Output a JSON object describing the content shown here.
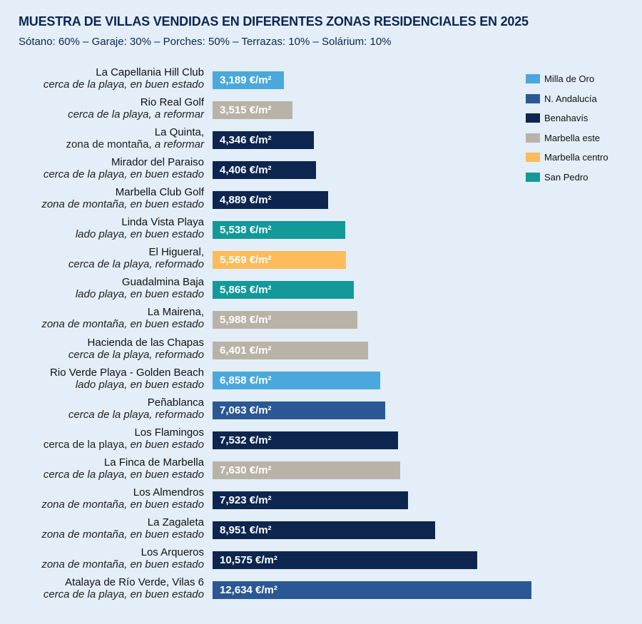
{
  "chart_data": {
    "type": "bar",
    "orientation": "horizontal",
    "title": "MUESTRA DE VILLAS VENDIDAS EN DIFERENTES ZONAS RESIDENCIALES EN 2025",
    "subtitle": "Sótano: 60% – Garaje: 30% – Porches: 50% – Terrazas: 10% – Solárium: 10%",
    "unit": "€/m²",
    "legend_position": "top-right",
    "grid": false,
    "legend": [
      {
        "name": "Milla de Oro",
        "color": "#4aa8dc"
      },
      {
        "name": "N. Andalucía",
        "color": "#2b5894"
      },
      {
        "name": "Benahavís",
        "color": "#0d2650"
      },
      {
        "name": "Marbella este",
        "color": "#b9b2a7"
      },
      {
        "name": "Marbella centro",
        "color": "#fdbb5a"
      },
      {
        "name": "San Pedro",
        "color": "#13999a"
      }
    ],
    "bars": [
      {
        "name": "La Capellania Hill Club",
        "desc_plain": "",
        "desc_italic": "cerca de la playa, en buen estado",
        "value": 3189,
        "label": "3,189 €/m²",
        "zone": "Milla de Oro"
      },
      {
        "name": "Rio Real Golf",
        "desc_plain": "",
        "desc_italic": "cerca de la playa, a reformar",
        "value": 3515,
        "label": "3,515 €/m²",
        "zone": "Marbella este"
      },
      {
        "name": "La Quinta,",
        "desc_plain": "zona de montaña, ",
        "desc_italic": "a reformar",
        "value": 4346,
        "label": "4,346 €/m²",
        "zone": "Benahavís"
      },
      {
        "name": "Mirador del Paraiso",
        "desc_plain": "",
        "desc_italic": "cerca de la playa, en buen estado",
        "value": 4406,
        "label": "4,406 €/m²",
        "zone": "Benahavís"
      },
      {
        "name": "Marbella Club Golf",
        "desc_plain": "",
        "desc_italic": "zona de montaña, en buen estado",
        "value": 4889,
        "label": "4,889 €/m²",
        "zone": "Benahavís"
      },
      {
        "name": "Linda Vista Playa",
        "desc_plain": "",
        "desc_italic": "lado playa, en buen estado",
        "value": 5538,
        "label": "5,538 €/m²",
        "zone": "San Pedro"
      },
      {
        "name": "El Higueral,",
        "desc_plain": "",
        "desc_italic": "cerca de la playa, reformado",
        "value": 5569,
        "label": "5,569 €/m²",
        "zone": "Marbella centro"
      },
      {
        "name": "Guadalmina Baja",
        "desc_plain": "",
        "desc_italic": "lado playa, en buen estado",
        "value": 5865,
        "label": "5,865 €/m²",
        "zone": "San Pedro"
      },
      {
        "name": "La Mairena,",
        "desc_plain": "",
        "desc_italic": "zona de montaña, en buen estado",
        "value": 5988,
        "label": "5,988 €/m²",
        "zone": "Marbella este"
      },
      {
        "name": "Hacienda de las Chapas",
        "desc_plain": "",
        "desc_italic": "cerca de la playa, reformado",
        "value": 6401,
        "label": "6,401 €/m²",
        "zone": "Marbella este"
      },
      {
        "name": "Rio Verde Playa - Golden Beach",
        "desc_plain": "",
        "desc_italic": "lado playa, en buen estado",
        "value": 6858,
        "label": "6,858 €/m²",
        "zone": "Milla de Oro"
      },
      {
        "name": "Peñablanca",
        "desc_plain": "",
        "desc_italic": "cerca de la playa, reformado",
        "value": 7063,
        "label": "7,063 €/m²",
        "zone": "N. Andalucía"
      },
      {
        "name": "Los Flamingos",
        "desc_plain": "cerca de la playa, ",
        "desc_italic": "en buen estado",
        "value": 7532,
        "label": "7,532 €/m²",
        "zone": "Benahavís"
      },
      {
        "name": "La Finca de Marbella",
        "desc_plain": "",
        "desc_italic": "cerca de la playa, en buen estado",
        "value": 7630,
        "label": "7,630 €/m²",
        "zone": "Marbella este"
      },
      {
        "name": "Los Almendros",
        "desc_plain": "",
        "desc_italic": "zona de montaña, en buen estado",
        "value": 7923,
        "label": "7,923 €/m²",
        "zone": "Benahavís"
      },
      {
        "name": "La Zagaleta",
        "desc_plain": "",
        "desc_italic": "zona de montaña, en buen estado",
        "value": 8951,
        "label": "8,951 €/m²",
        "zone": "Benahavís"
      },
      {
        "name": "Los Arqueros",
        "desc_plain": "",
        "desc_italic": "zona de montaña, en buen estado",
        "value": 10575,
        "label": "10,575 €/m²",
        "zone": "Benahavís"
      },
      {
        "name": "Atalaya de Río Verde, Vilas 6",
        "desc_plain": "",
        "desc_italic": "cerca de la playa, en buen estado",
        "value": 12634,
        "label": "12,634 €/m²",
        "zone": "N. Andalucía"
      }
    ]
  }
}
